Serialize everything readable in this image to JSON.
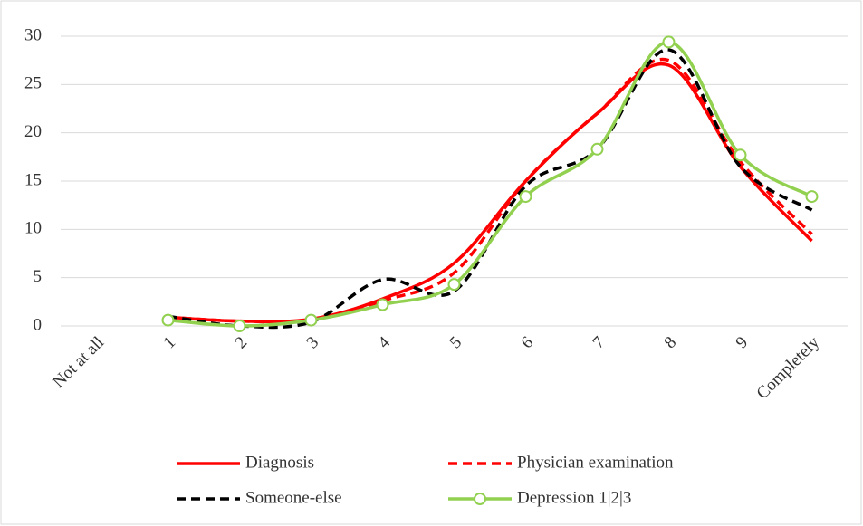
{
  "chart_data": {
    "type": "line",
    "categories": [
      "Not at all",
      "1",
      "2",
      "3",
      "4",
      "5",
      "6",
      "7",
      "8",
      "9",
      "Completely"
    ],
    "series": [
      {
        "name": "Diagnosis",
        "color": "#ff0000",
        "line_style": "solid",
        "marker": "none",
        "values": [
          null,
          0.9,
          0.5,
          0.7,
          2.8,
          6.5,
          15,
          22,
          27,
          16.5,
          8.8
        ]
      },
      {
        "name": "Physician examination",
        "color": "#ff0000",
        "line_style": "dashed",
        "marker": "none",
        "values": [
          null,
          0.9,
          0.5,
          0.6,
          2.6,
          5.5,
          15,
          22,
          27.5,
          17,
          9.5
        ]
      },
      {
        "name": "Someone-else",
        "color": "#000000",
        "line_style": "dashed",
        "marker": "none",
        "values": [
          null,
          1.0,
          0.0,
          0.4,
          4.8,
          3.6,
          14.5,
          18.3,
          28.6,
          16.5,
          12
        ]
      },
      {
        "name": "Depression 1|2|3",
        "color": "#92d050",
        "line_style": "solid",
        "marker": "circle",
        "values": [
          null,
          0.6,
          0.0,
          0.6,
          2.2,
          4.3,
          13.4,
          18.3,
          29.4,
          17.7,
          13.4
        ]
      }
    ],
    "ylim": [
      0,
      30
    ],
    "yticks": [
      0,
      5,
      10,
      15,
      20,
      25,
      30
    ],
    "grid": true,
    "legend": "bottom"
  }
}
